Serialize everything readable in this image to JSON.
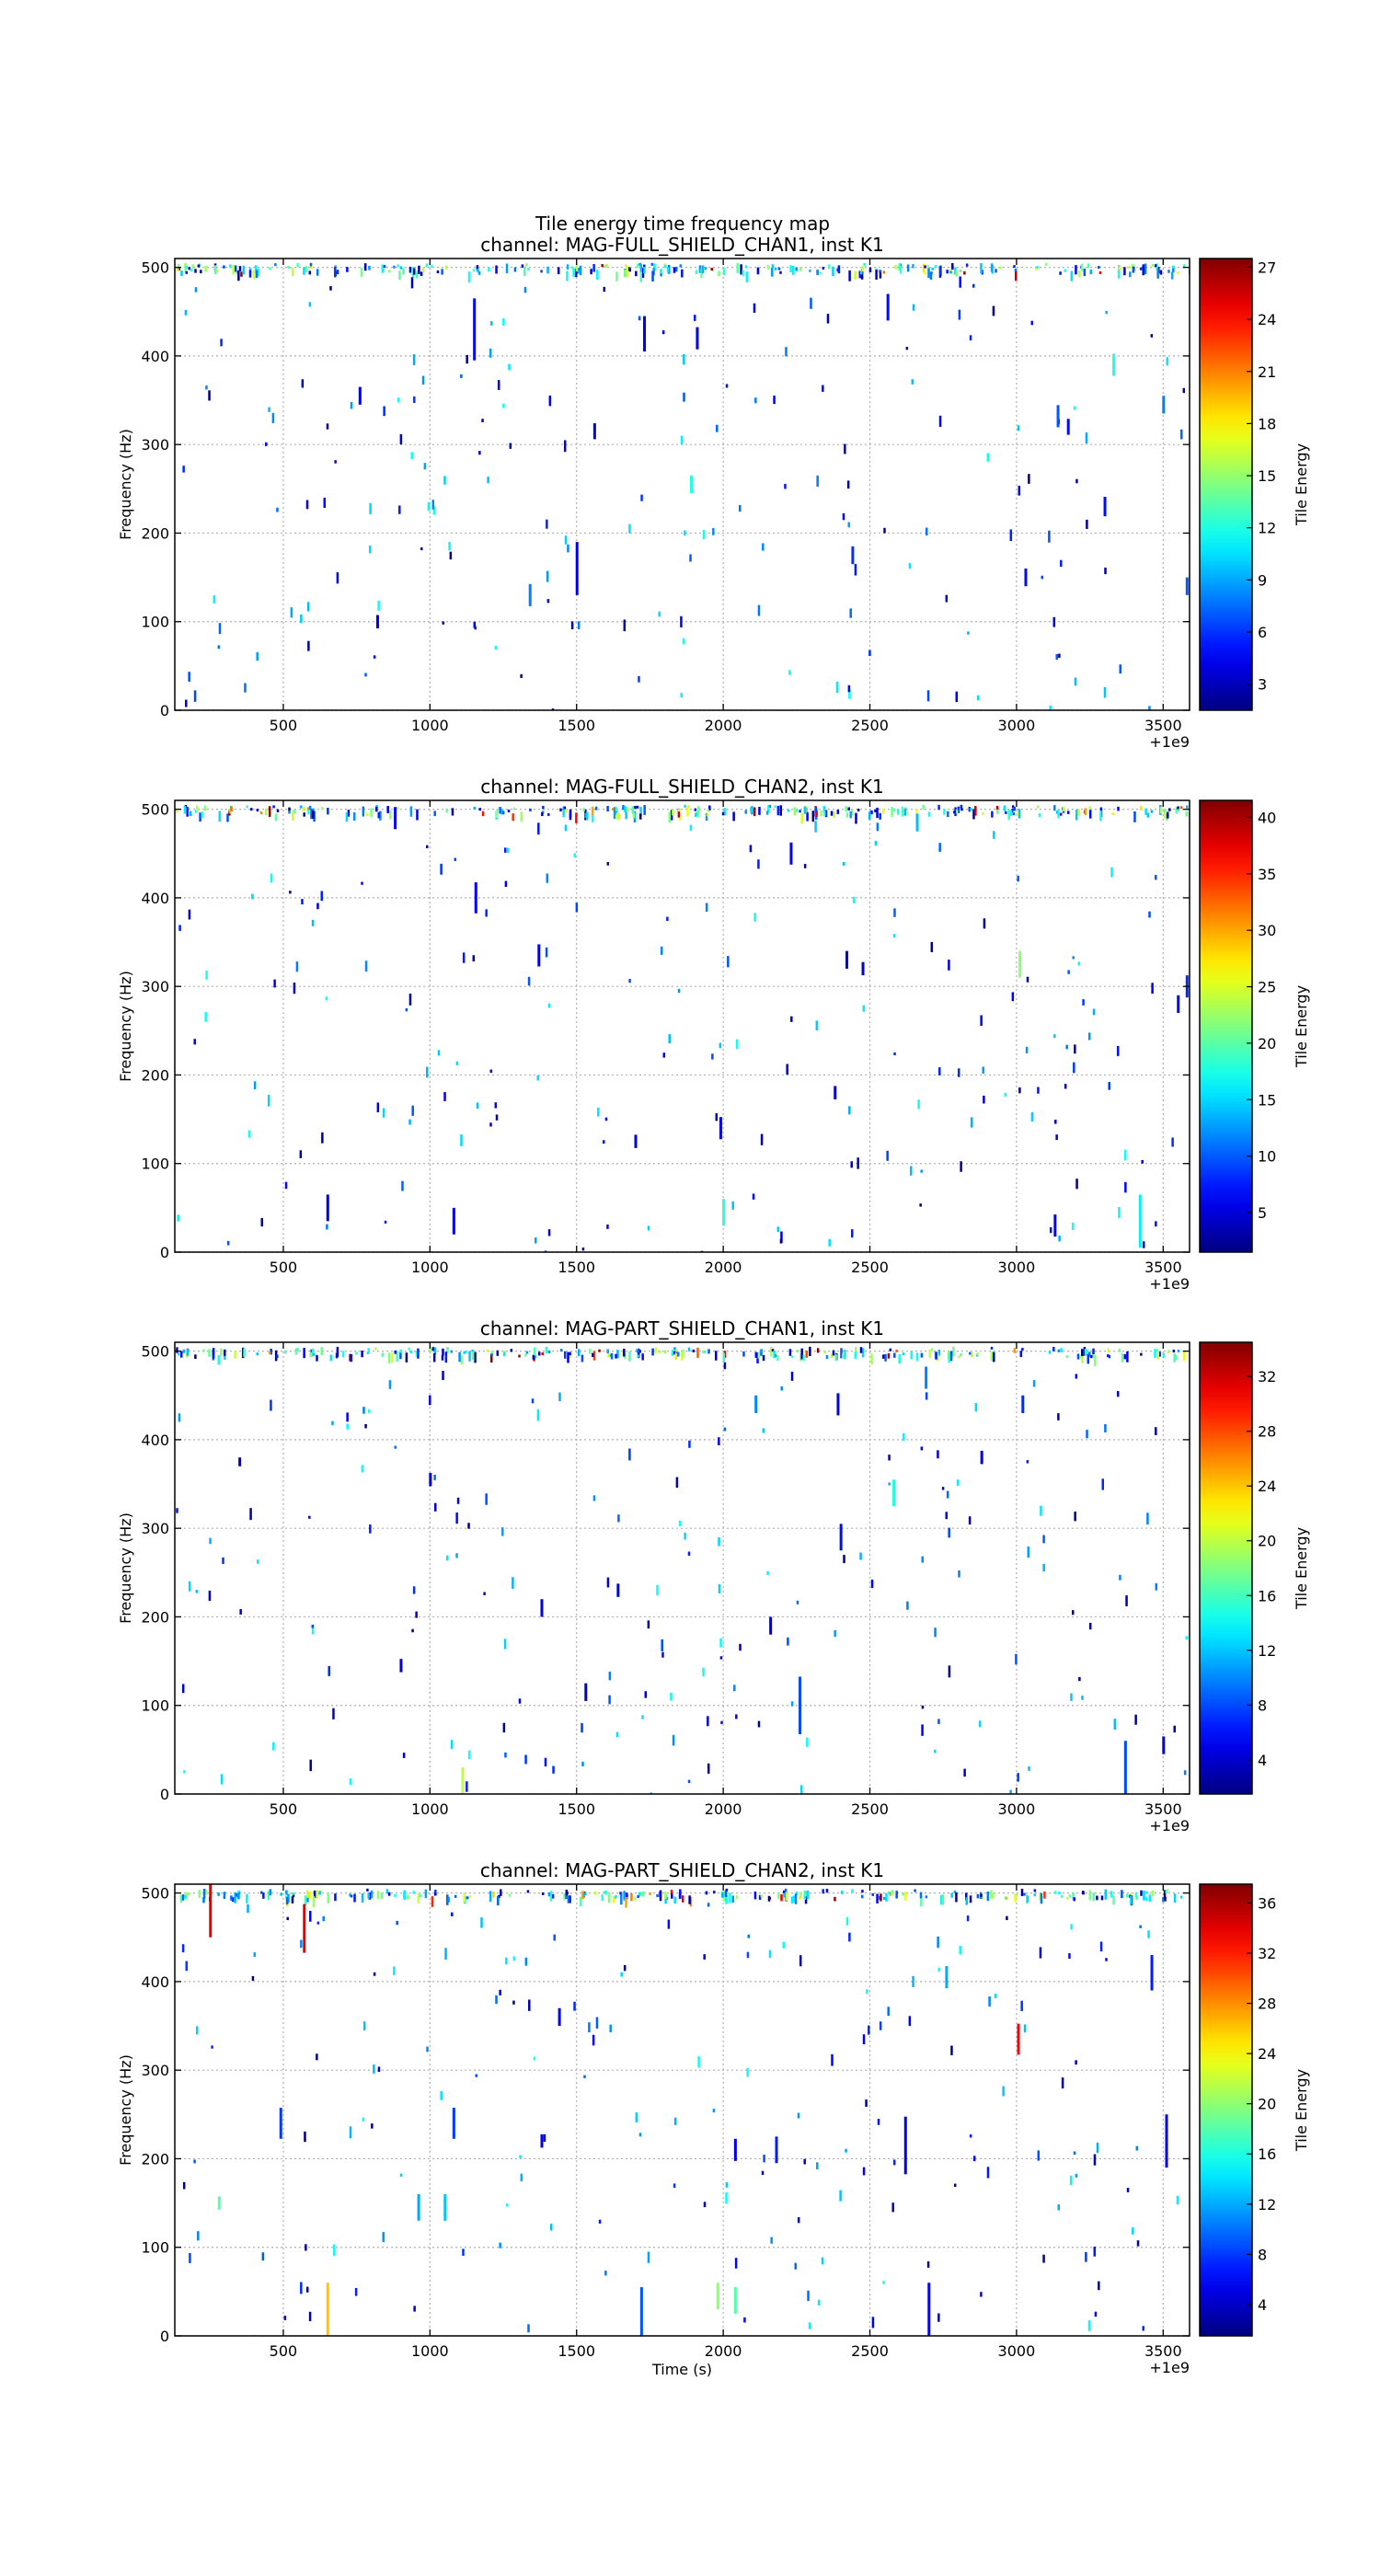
{
  "figure": {
    "suptitle": "Tile energy time frequency map",
    "colors": {
      "background": "#ffffff",
      "axes": "#000000",
      "grid": "#b0b0b0",
      "colormap": "jet"
    }
  },
  "chart_data": [
    {
      "type": "heatmap",
      "title": "channel: MAG-FULL_SHIELD_CHAN1, inst K1",
      "xlabel": "",
      "ylabel": "Frequency (Hz)",
      "x_offset_label": "+1e9",
      "xlim": [
        130,
        3590
      ],
      "ylim": [
        0,
        510
      ],
      "xticks": [
        500,
        1000,
        1500,
        2000,
        2500,
        3000,
        3500
      ],
      "yticks": [
        0,
        100,
        200,
        300,
        400,
        500
      ],
      "grid": true,
      "colorbar": {
        "label": "Tile Energy",
        "range": [
          1.5,
          27.5
        ],
        "ticks": [
          3,
          6,
          9,
          12,
          15,
          18,
          21,
          24,
          27
        ]
      },
      "tiles": [
        [
          1150,
          430,
          70,
          5
        ],
        [
          1730,
          425,
          40,
          4
        ],
        [
          1910,
          420,
          25,
          4
        ],
        [
          2560,
          455,
          30,
          5
        ],
        [
          760,
          355,
          20,
          4
        ],
        [
          1500,
          160,
          60,
          4
        ],
        [
          1340,
          130,
          25,
          8
        ],
        [
          1560,
          315,
          18,
          4
        ],
        [
          1890,
          255,
          20,
          12
        ],
        [
          2440,
          175,
          20,
          6
        ],
        [
          3140,
          332,
          25,
          7
        ],
        [
          3175,
          320,
          18,
          5
        ],
        [
          3330,
          390,
          25,
          12
        ],
        [
          3300,
          230,
          22,
          5
        ],
        [
          3500,
          345,
          20,
          8
        ],
        [
          3580,
          140,
          20,
          7
        ],
        [
          820,
          100,
          15,
          4
        ],
        [
          3030,
          150,
          20,
          5
        ]
      ]
    },
    {
      "type": "heatmap",
      "title": "channel: MAG-FULL_SHIELD_CHAN2, inst K1",
      "xlabel": "",
      "ylabel": "Frequency (Hz)",
      "x_offset_label": "+1e9",
      "xlim": [
        130,
        3590
      ],
      "ylim": [
        0,
        510
      ],
      "xticks": [
        500,
        1000,
        1500,
        2000,
        2500,
        3000,
        3500
      ],
      "yticks": [
        0,
        100,
        200,
        300,
        400,
        500
      ],
      "grid": true,
      "colorbar": {
        "label": "Tile Energy",
        "range": [
          1.5,
          41.5
        ],
        "ticks": [
          5,
          10,
          15,
          20,
          25,
          30,
          35,
          40
        ]
      },
      "tiles": [
        [
          1155,
          400,
          35,
          6
        ],
        [
          1370,
          335,
          25,
          6
        ],
        [
          2000,
          45,
          30,
          18
        ],
        [
          1990,
          140,
          25,
          6
        ],
        [
          3010,
          325,
          30,
          22
        ],
        [
          3420,
          35,
          60,
          16
        ],
        [
          3580,
          300,
          25,
          8
        ],
        [
          880,
          490,
          25,
          6
        ],
        [
          650,
          50,
          30,
          5
        ],
        [
          1080,
          35,
          30,
          5
        ],
        [
          2230,
          450,
          25,
          6
        ],
        [
          2660,
          485,
          20,
          14
        ],
        [
          3130,
          30,
          25,
          6
        ],
        [
          3550,
          280,
          20,
          6
        ],
        [
          2420,
          330,
          20,
          5
        ],
        [
          2475,
          320,
          15,
          5
        ],
        [
          1700,
          125,
          15,
          5
        ],
        [
          2380,
          180,
          15,
          4
        ]
      ]
    },
    {
      "type": "heatmap",
      "title": "channel: MAG-PART_SHIELD_CHAN1, inst K1",
      "xlabel": "",
      "ylabel": "Frequency (Hz)",
      "x_offset_label": "+1e9",
      "xlim": [
        130,
        3590
      ],
      "ylim": [
        0,
        510
      ],
      "xticks": [
        500,
        1000,
        1500,
        2000,
        2500,
        3000,
        3500
      ],
      "yticks": [
        0,
        100,
        200,
        300,
        400,
        500
      ],
      "grid": true,
      "colorbar": {
        "label": "Tile Energy",
        "range": [
          1.5,
          34.5
        ],
        "ticks": [
          4,
          8,
          12,
          16,
          20,
          24,
          28,
          32
        ]
      },
      "tiles": [
        [
          2260,
          100,
          65,
          8
        ],
        [
          2400,
          290,
          30,
          6
        ],
        [
          3370,
          30,
          60,
          8
        ],
        [
          1110,
          15,
          30,
          20
        ],
        [
          2580,
          340,
          30,
          15
        ],
        [
          2110,
          440,
          20,
          10
        ],
        [
          3020,
          440,
          20,
          7
        ],
        [
          2390,
          440,
          25,
          5
        ],
        [
          2690,
          470,
          25,
          10
        ],
        [
          1380,
          210,
          20,
          5
        ],
        [
          1640,
          230,
          15,
          4
        ],
        [
          1000,
          355,
          15,
          4
        ],
        [
          350,
          375,
          10,
          4
        ],
        [
          900,
          145,
          15,
          4
        ],
        [
          3500,
          55,
          20,
          5
        ],
        [
          2160,
          190,
          20,
          4
        ],
        [
          2880,
          380,
          15,
          4
        ],
        [
          1530,
          115,
          20,
          4
        ]
      ]
    },
    {
      "type": "heatmap",
      "title": "channel: MAG-PART_SHIELD_CHAN2, inst K1",
      "xlabel": "Time (s)",
      "ylabel": "Frequency (Hz)",
      "x_offset_label": "+1e9",
      "xlim": [
        130,
        3590
      ],
      "ylim": [
        0,
        510
      ],
      "xticks": [
        500,
        1000,
        1500,
        2000,
        2500,
        3000,
        3500
      ],
      "yticks": [
        0,
        100,
        200,
        300,
        400,
        500
      ],
      "grid": true,
      "colorbar": {
        "label": "Tile Energy",
        "range": [
          1.5,
          37.5
        ],
        "ticks": [
          4,
          8,
          12,
          16,
          20,
          24,
          28,
          32,
          36
        ]
      },
      "tiles": [
        [
          250,
          480,
          60,
          34
        ],
        [
          570,
          460,
          55,
          34
        ],
        [
          3005,
          335,
          35,
          33
        ],
        [
          1720,
          25,
          60,
          9
        ],
        [
          2700,
          30,
          60,
          6
        ],
        [
          1980,
          45,
          30,
          20
        ],
        [
          2040,
          40,
          30,
          18
        ],
        [
          650,
          30,
          60,
          26
        ],
        [
          2620,
          215,
          65,
          5
        ],
        [
          2180,
          210,
          30,
          7
        ],
        [
          3510,
          220,
          60,
          6
        ],
        [
          3460,
          410,
          40,
          7
        ],
        [
          1080,
          240,
          35,
          8
        ],
        [
          960,
          145,
          30,
          12
        ],
        [
          1050,
          145,
          30,
          13
        ],
        [
          490,
          240,
          35,
          8
        ],
        [
          280,
          150,
          15,
          18
        ],
        [
          2760,
          405,
          25,
          12
        ],
        [
          1440,
          360,
          20,
          6
        ],
        [
          1380,
          220,
          15,
          6
        ],
        [
          2040,
          210,
          25,
          5
        ]
      ]
    }
  ]
}
